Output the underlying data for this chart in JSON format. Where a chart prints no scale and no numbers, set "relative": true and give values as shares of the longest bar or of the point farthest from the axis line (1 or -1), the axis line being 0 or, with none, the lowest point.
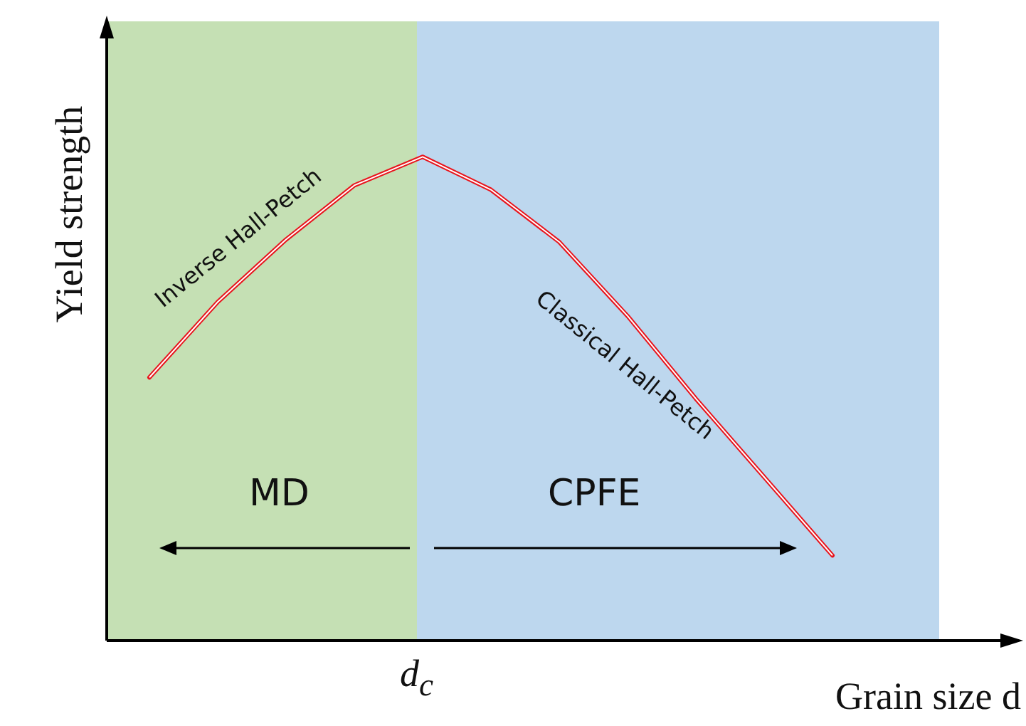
{
  "chart_data": {
    "type": "line",
    "relative": true,
    "xlabel": "Grain size d",
    "ylabel": "Yield strength",
    "categories": [
      null,
      null,
      null,
      null,
      null,
      null,
      null,
      null,
      null,
      null,
      null
    ],
    "series": [
      {
        "color": "#e8141c",
        "values": [
          0.544,
          0.7,
          0.829,
          0.941,
          1,
          0.932,
          0.824,
          0.671,
          0.5,
          0.338,
          0.176
        ]
      }
    ],
    "annotations": [
      "Inverse Hall-Petch",
      "Classical Hall-Petch",
      "MD",
      "CPFE",
      "d$_{c}$"
    ],
    "marker": "none",
    "line_style": "solid",
    "legend": false
  }
}
